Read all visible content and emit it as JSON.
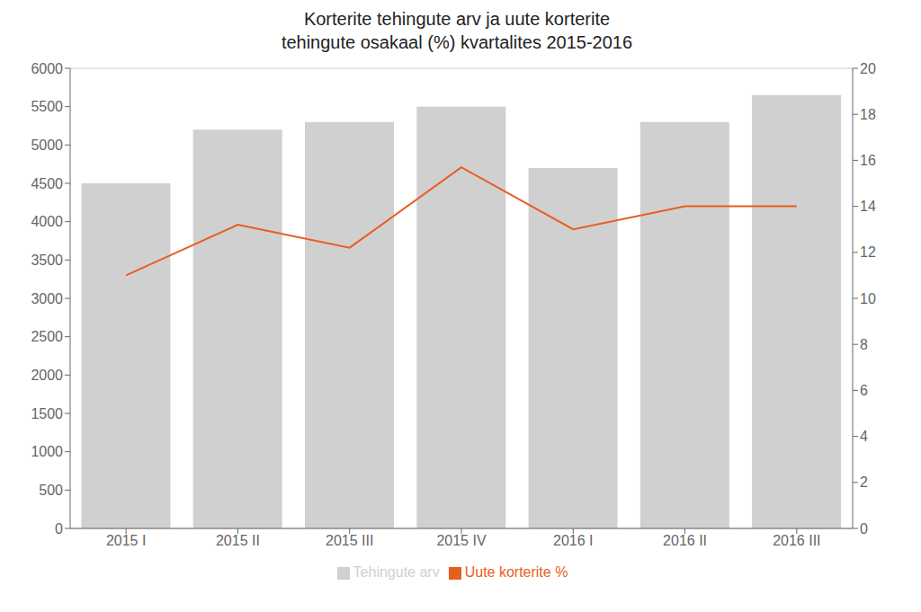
{
  "chart_data": {
    "type": "bar",
    "title": "Korterite tehingute arv ja uute korterite\ntehingute osakaal (%) kvartalites 2015-2016",
    "categories": [
      "2015 I",
      "2015 II",
      "2015 III",
      "2015 IV",
      "2016 I",
      "2016 II",
      "2016 III"
    ],
    "series": [
      {
        "name": "Tehingute arv",
        "type": "bar",
        "color": "#d0d0d0",
        "values": [
          4500,
          5200,
          5300,
          5500,
          4700,
          5300,
          5650
        ]
      },
      {
        "name": "Uute korterite %",
        "type": "line",
        "color": "#e85e1e",
        "axis": "y2",
        "values": [
          11.0,
          13.2,
          12.2,
          15.7,
          13.0,
          14.0,
          14.0
        ]
      }
    ],
    "ylim": [
      0,
      6000
    ],
    "yticks": [
      0,
      500,
      1000,
      1500,
      2000,
      2500,
      3000,
      3500,
      4000,
      4500,
      5000,
      5500,
      6000
    ],
    "y2lim": [
      0,
      20
    ],
    "y2ticks": [
      0,
      2,
      4,
      6,
      8,
      10,
      12,
      14,
      16,
      18,
      20
    ],
    "grid": true,
    "legend": "bottom"
  }
}
